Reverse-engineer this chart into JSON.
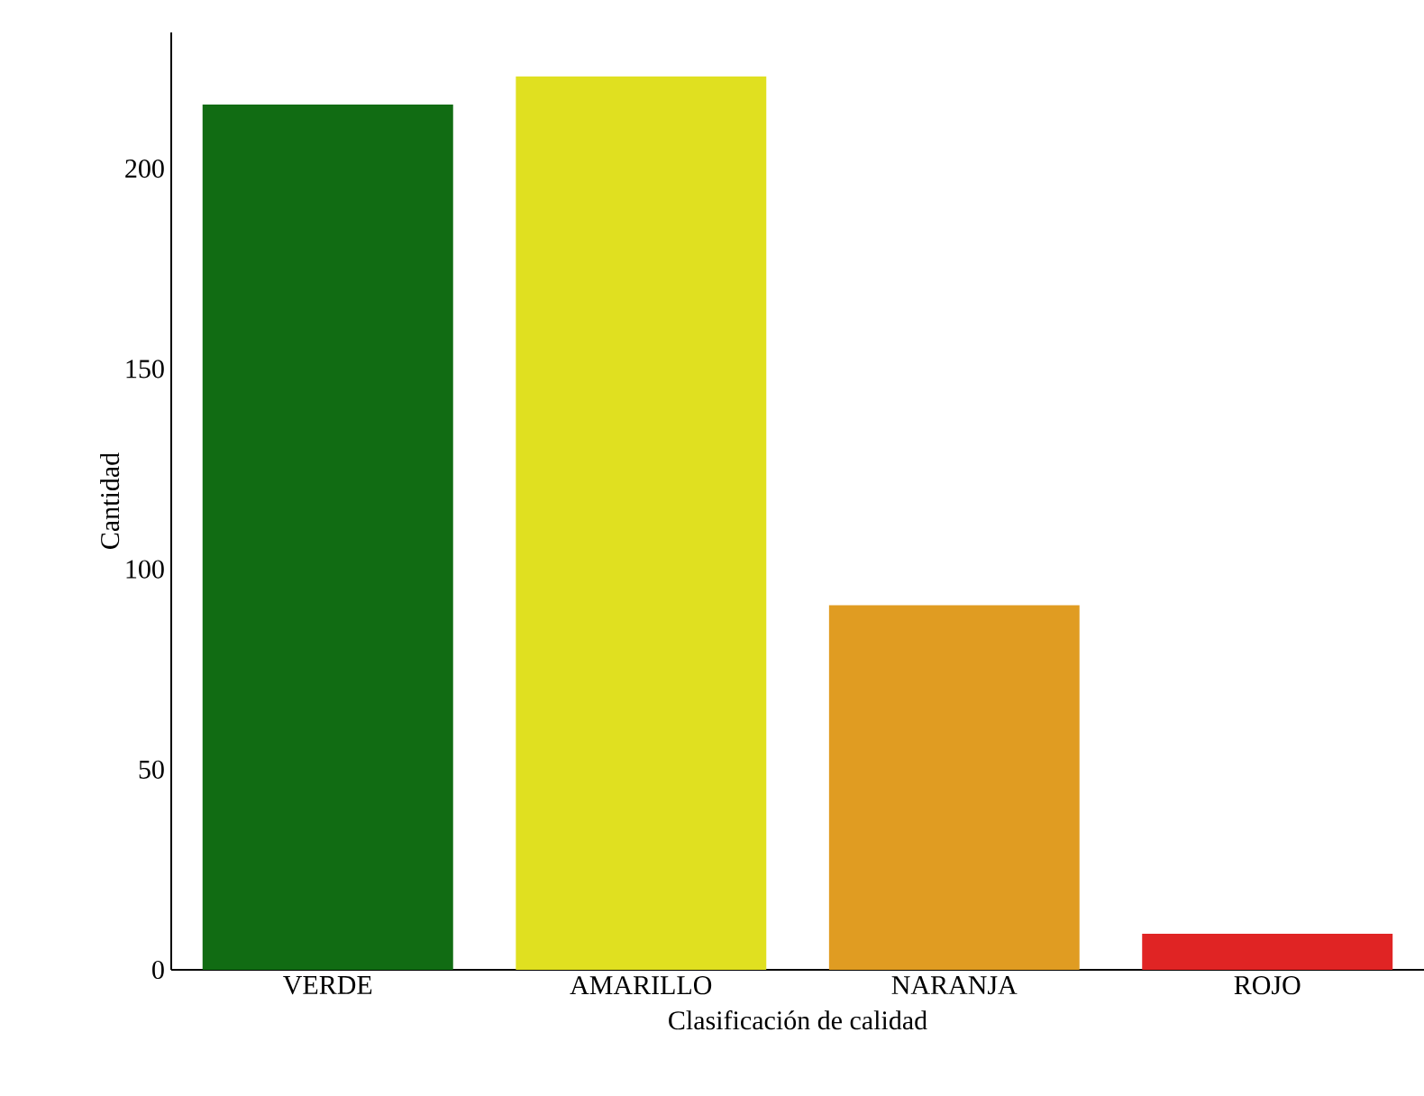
{
  "chart_data": {
    "type": "bar",
    "xlabel": "Clasificación de calidad",
    "ylabel": "Cantidad",
    "categories": [
      "VERDE",
      "AMARILLO",
      "NARANJA",
      "ROJO"
    ],
    "values": [
      216,
      223,
      91,
      9
    ],
    "colors": [
      "#116c13",
      "#e0e020",
      "#e09c22",
      "#e02424"
    ],
    "ylim": [
      0,
      234
    ],
    "yticks": [
      0,
      50,
      100,
      150,
      200
    ],
    "grid": false
  }
}
